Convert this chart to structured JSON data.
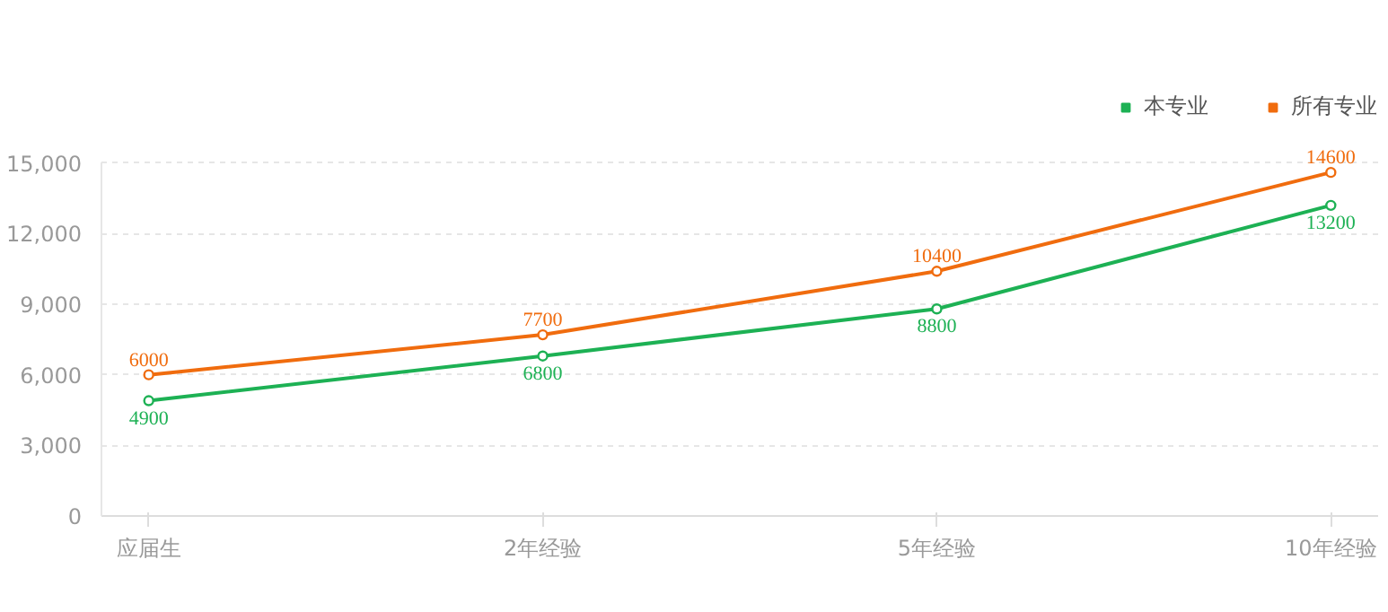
{
  "chart_data": {
    "type": "line",
    "categories": [
      "应届生",
      "2年经验",
      "5年经验",
      "10年经验"
    ],
    "series": [
      {
        "name": "本专业",
        "color": "#1db154",
        "values": [
          4900,
          6800,
          8800,
          13200
        ]
      },
      {
        "name": "所有专业",
        "color": "#f06c0e",
        "values": [
          6000,
          7700,
          10400,
          14600
        ]
      }
    ],
    "ylim": [
      0,
      15000
    ],
    "yticks": [
      {
        "value": 0,
        "label": "0"
      },
      {
        "value": 3000,
        "label": "3,000"
      },
      {
        "value": 6000,
        "label": "6,000"
      },
      {
        "value": 9000,
        "label": "9,000"
      },
      {
        "value": 12000,
        "label": "12,000"
      },
      {
        "value": 15000,
        "label": "15,000"
      }
    ],
    "grid": "y",
    "legend": "top right",
    "marker": "circle",
    "line_style": "solid",
    "data_labels": true
  }
}
